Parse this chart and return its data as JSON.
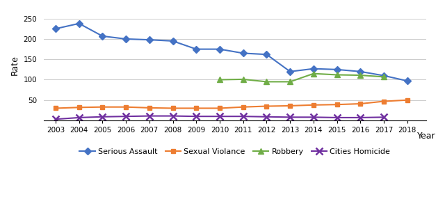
{
  "years": [
    2003,
    2004,
    2005,
    2006,
    2007,
    2008,
    2009,
    2010,
    2011,
    2012,
    2013,
    2014,
    2015,
    2016,
    2017,
    2018
  ],
  "serious_assault": [
    225,
    238,
    207,
    200,
    198,
    195,
    175,
    175,
    165,
    162,
    120,
    127,
    125,
    120,
    110,
    97
  ],
  "sexual_violence": [
    30,
    32,
    33,
    33,
    31,
    30,
    30,
    30,
    33,
    35,
    36,
    38,
    39,
    41,
    47,
    50
  ],
  "robbery": [
    null,
    null,
    null,
    null,
    null,
    null,
    null,
    100,
    101,
    95,
    95,
    115,
    112,
    111,
    107,
    null
  ],
  "cities_homicide": [
    3,
    7,
    9,
    10,
    11,
    11,
    10,
    10,
    10,
    9,
    8,
    8,
    7,
    7,
    8,
    null
  ],
  "series_labels": [
    "Serious Assault",
    "Sexual Violance",
    "Robbery",
    "Cities Homicide"
  ],
  "colors": [
    "#4472C4",
    "#ED7D31",
    "#70AD47",
    "#7030A0"
  ],
  "markers": [
    "D",
    "s",
    "^",
    "x"
  ],
  "marker_sizes": [
    5,
    5,
    6,
    7
  ],
  "ylabel": "Rate",
  "xlabel": "Year",
  "ylim": [
    0,
    270
  ],
  "yticks": [
    0,
    50,
    100,
    150,
    200,
    250
  ],
  "background_color": "#FFFFFF",
  "grid_color": "#CCCCCC"
}
